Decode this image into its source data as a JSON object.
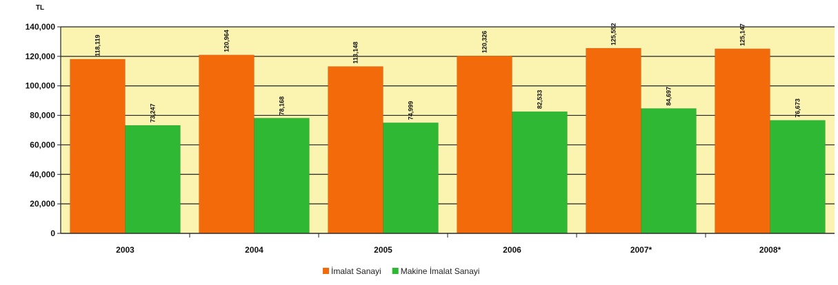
{
  "chart_data": {
    "type": "bar",
    "unit_label": "TL",
    "categories": [
      "2003",
      "2004",
      "2005",
      "2006",
      "2007*",
      "2008*"
    ],
    "series": [
      {
        "name": "İmalat Sanayi",
        "color": "#f26a0a",
        "values": [
          118119,
          120964,
          113148,
          120326,
          125552,
          125147
        ],
        "labels": [
          "118,119",
          "120,964",
          "113,148",
          "120,326",
          "125,552",
          "125,147"
        ]
      },
      {
        "name": "Makine İmalat Sanayi",
        "color": "#2fb833",
        "values": [
          73247,
          78168,
          74999,
          82533,
          84697,
          76673
        ],
        "labels": [
          "73,247",
          "78,168",
          "74,999",
          "82,533",
          "84,697",
          "76,673"
        ]
      }
    ],
    "ylim": [
      0,
      140000
    ],
    "yticks": [
      0,
      20000,
      40000,
      60000,
      80000,
      100000,
      120000,
      140000
    ],
    "ytick_labels": [
      "0",
      "20,000",
      "40,000",
      "60,000",
      "80,000",
      "100,000",
      "120,000",
      "140,000"
    ],
    "grid": true,
    "plot_background": "#fbf3b0",
    "legend_position": "bottom"
  }
}
